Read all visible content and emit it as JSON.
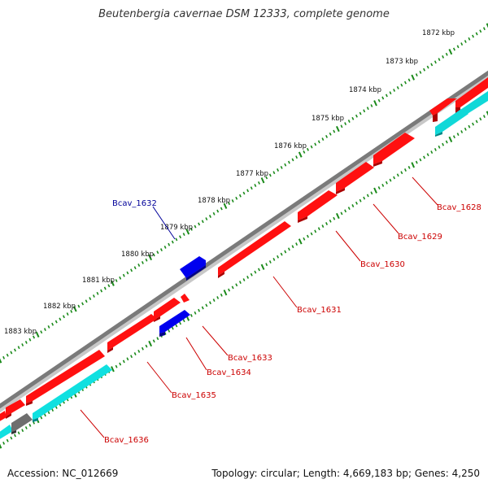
{
  "title": "Beutenbergia cavernae DSM 12333, complete genome",
  "footer": {
    "accession": "Accession: NC_012669",
    "summary": "Topology: circular; Length: 4,669,183 bp; Genes: 4,250"
  },
  "colors": {
    "background": "#ffffff",
    "backbone": "#808080",
    "tick": "#1a8a1a",
    "forward_gene": "#ff0000",
    "reverse_gene": "#0000ff",
    "rna_or_cds": "#00d0d0",
    "other_feature": "#707070",
    "label_forward": "#cc0000",
    "label_reverse": "#000099"
  },
  "scale": {
    "unit": "kbp",
    "labels": [
      "1872 kbp",
      "1873 kbp",
      "1874 kbp",
      "1875 kbp",
      "1876 kbp",
      "1877 kbp",
      "1878 kbp",
      "1879 kbp",
      "1880 kbp",
      "1881 kbp",
      "1882 kbp",
      "1883 kbp"
    ]
  },
  "gene_labels": [
    {
      "name": "Bcav_1628",
      "strand": "forward"
    },
    {
      "name": "Bcav_1629",
      "strand": "forward"
    },
    {
      "name": "Bcav_1630",
      "strand": "forward"
    },
    {
      "name": "Bcav_1631",
      "strand": "forward"
    },
    {
      "name": "Bcav_1632",
      "strand": "reverse"
    },
    {
      "name": "Bcav_1633",
      "strand": "forward"
    },
    {
      "name": "Bcav_1634",
      "strand": "forward"
    },
    {
      "name": "Bcav_1635",
      "strand": "forward"
    },
    {
      "name": "Bcav_1636",
      "strand": "forward"
    }
  ]
}
